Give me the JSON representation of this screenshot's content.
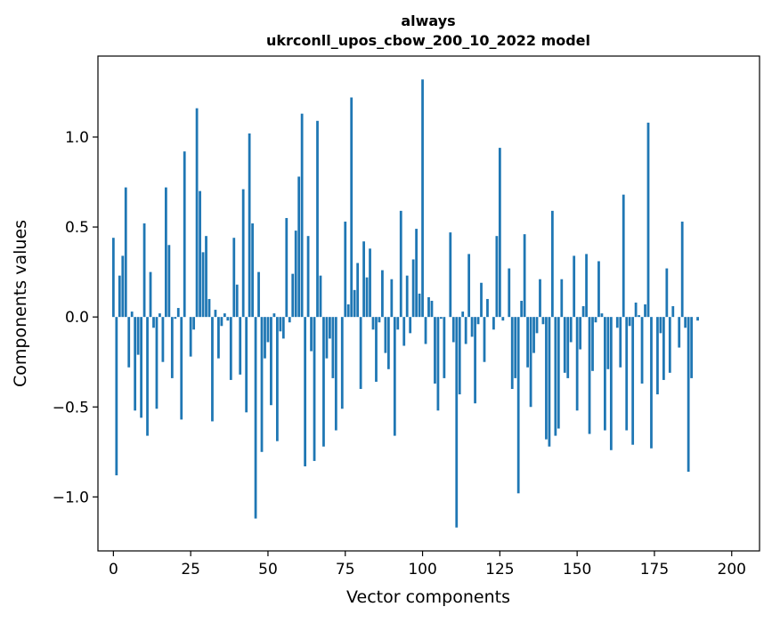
{
  "chart_data": {
    "type": "bar",
    "title_line1": "always",
    "title_line2": "ukrconll_upos_cbow_200_10_2022 model",
    "xlabel": "Vector components",
    "ylabel": "Components values",
    "xlim": [
      -5,
      209
    ],
    "ylim": [
      -1.3,
      1.45
    ],
    "x_ticks": [
      0,
      25,
      50,
      75,
      100,
      125,
      150,
      175,
      200
    ],
    "x_tick_labels": [
      "0",
      "25",
      "50",
      "75",
      "100",
      "125",
      "150",
      "175",
      "200"
    ],
    "y_ticks": [
      -1.0,
      -0.5,
      0.0,
      0.5,
      1.0
    ],
    "y_tick_labels": [
      "−1.0",
      "−0.5",
      "0.0",
      "0.5",
      "1.0"
    ],
    "bar_color": "#1f77b4",
    "values": [
      0.44,
      -0.88,
      0.23,
      0.34,
      0.72,
      -0.28,
      0.03,
      -0.52,
      -0.21,
      -0.56,
      0.52,
      -0.66,
      0.25,
      -0.06,
      -0.51,
      0.02,
      -0.25,
      0.72,
      0.4,
      -0.34,
      -0.01,
      0.05,
      -0.57,
      0.92,
      0.0,
      -0.22,
      -0.07,
      1.16,
      0.7,
      0.36,
      0.45,
      0.1,
      -0.58,
      0.04,
      -0.23,
      -0.05,
      0.02,
      -0.02,
      -0.35,
      0.44,
      0.18,
      -0.32,
      0.71,
      -0.53,
      1.02,
      0.52,
      -1.12,
      0.25,
      -0.75,
      -0.23,
      -0.14,
      -0.49,
      0.02,
      -0.69,
      -0.08,
      -0.12,
      0.55,
      -0.03,
      0.24,
      0.48,
      0.78,
      1.13,
      -0.83,
      0.45,
      -0.19,
      -0.8,
      1.09,
      0.23,
      -0.72,
      -0.23,
      -0.12,
      -0.34,
      -0.63,
      0.0,
      -0.51,
      0.53,
      0.07,
      1.22,
      0.15,
      0.3,
      -0.4,
      0.42,
      0.22,
      0.38,
      -0.07,
      -0.36,
      -0.03,
      0.26,
      -0.2,
      -0.29,
      0.21,
      -0.66,
      -0.07,
      0.59,
      -0.16,
      0.23,
      -0.09,
      0.32,
      0.49,
      0.13,
      1.32,
      -0.15,
      0.11,
      0.09,
      -0.37,
      -0.52,
      -0.01,
      -0.34,
      0.0,
      0.47,
      -0.14,
      -1.17,
      -0.43,
      0.03,
      -0.15,
      0.35,
      -0.11,
      -0.48,
      -0.04,
      0.19,
      -0.25,
      0.1,
      0.0,
      -0.07,
      0.45,
      0.94,
      -0.02,
      0.0,
      0.27,
      -0.4,
      -0.34,
      -0.98,
      0.09,
      0.46,
      -0.28,
      -0.5,
      -0.2,
      -0.09,
      0.21,
      -0.04,
      -0.68,
      -0.72,
      0.59,
      -0.66,
      -0.62,
      0.21,
      -0.31,
      -0.34,
      -0.14,
      0.34,
      -0.52,
      -0.18,
      0.06,
      0.35,
      -0.65,
      -0.3,
      -0.03,
      0.31,
      0.02,
      -0.63,
      -0.29,
      -0.74,
      0.0,
      -0.06,
      -0.28,
      0.68,
      -0.63,
      -0.05,
      -0.71,
      0.08,
      0.01,
      -0.37,
      0.07,
      1.08,
      -0.73,
      0.0,
      -0.43,
      -0.09,
      -0.35,
      0.27,
      -0.31,
      0.06,
      0.0,
      -0.17,
      0.53,
      -0.06,
      -0.86,
      -0.34,
      0.0,
      -0.02
    ]
  }
}
